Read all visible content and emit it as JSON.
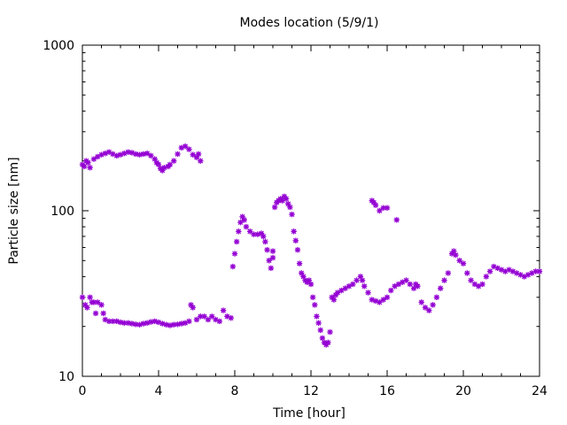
{
  "chart_data": {
    "type": "scatter",
    "title": "Modes location (5/9/1)",
    "xlabel": "Time [hour]",
    "ylabel": "Particle size [nm]",
    "xlim": [
      0,
      24
    ],
    "ylim": [
      10,
      1000
    ],
    "y_scale": "log",
    "x_ticks": [
      0,
      4,
      8,
      12,
      16,
      20,
      24
    ],
    "y_ticks": [
      10,
      100,
      1000
    ],
    "grid": false,
    "legend": "none",
    "marker_color": "#9400d3",
    "series": [
      {
        "points": [
          [
            0.0,
            190
          ],
          [
            0.1,
            185
          ],
          [
            0.2,
            200
          ],
          [
            0.3,
            195
          ],
          [
            0.4,
            182
          ],
          [
            0.6,
            205
          ],
          [
            0.8,
            212
          ],
          [
            1.0,
            218
          ],
          [
            1.2,
            222
          ],
          [
            1.4,
            226
          ],
          [
            1.6,
            220
          ],
          [
            1.8,
            215
          ],
          [
            2.0,
            218
          ],
          [
            2.2,
            222
          ],
          [
            2.4,
            226
          ],
          [
            2.6,
            224
          ],
          [
            2.8,
            220
          ],
          [
            3.0,
            218
          ],
          [
            3.2,
            220
          ],
          [
            3.4,
            222
          ],
          [
            3.6,
            215
          ],
          [
            3.8,
            205
          ],
          [
            3.9,
            195
          ],
          [
            4.0,
            190
          ],
          [
            4.1,
            180
          ],
          [
            4.2,
            175
          ],
          [
            4.3,
            182
          ],
          [
            4.5,
            185
          ],
          [
            4.6,
            190
          ],
          [
            4.8,
            200
          ],
          [
            5.0,
            220
          ],
          [
            5.2,
            240
          ],
          [
            5.4,
            245
          ],
          [
            5.6,
            235
          ],
          [
            5.8,
            218
          ],
          [
            6.0,
            210
          ],
          [
            6.2,
            200
          ],
          [
            6.1,
            220
          ],
          [
            0.0,
            30
          ],
          [
            0.15,
            27
          ],
          [
            0.25,
            26
          ],
          [
            0.4,
            30
          ],
          [
            0.5,
            28
          ],
          [
            0.6,
            28
          ],
          [
            0.8,
            28
          ],
          [
            1.0,
            27
          ],
          [
            1.1,
            24
          ],
          [
            0.7,
            24
          ],
          [
            1.2,
            22
          ],
          [
            1.4,
            21.5
          ],
          [
            1.6,
            21.5
          ],
          [
            1.8,
            21.5
          ],
          [
            2.0,
            21.2
          ],
          [
            2.2,
            21.0
          ],
          [
            2.4,
            21.0
          ],
          [
            2.6,
            20.8
          ],
          [
            2.8,
            20.6
          ],
          [
            3.0,
            20.5
          ],
          [
            3.2,
            20.8
          ],
          [
            3.4,
            21.0
          ],
          [
            3.6,
            21.3
          ],
          [
            3.8,
            21.5
          ],
          [
            4.0,
            21.2
          ],
          [
            4.2,
            20.8
          ],
          [
            4.4,
            20.5
          ],
          [
            4.6,
            20.3
          ],
          [
            4.8,
            20.5
          ],
          [
            5.0,
            20.6
          ],
          [
            5.2,
            20.8
          ],
          [
            5.4,
            21.0
          ],
          [
            5.6,
            21.5
          ],
          [
            5.7,
            27
          ],
          [
            5.8,
            26
          ],
          [
            6.0,
            22
          ],
          [
            6.2,
            23
          ],
          [
            6.4,
            23
          ],
          [
            6.6,
            22
          ],
          [
            6.8,
            23
          ],
          [
            7.0,
            22
          ],
          [
            7.2,
            21.5
          ],
          [
            7.4,
            25
          ],
          [
            7.6,
            23
          ],
          [
            7.8,
            22.5
          ],
          [
            7.9,
            46
          ],
          [
            8.0,
            55
          ],
          [
            8.1,
            65
          ],
          [
            8.2,
            75
          ],
          [
            8.3,
            85
          ],
          [
            8.4,
            92
          ],
          [
            8.5,
            88
          ],
          [
            8.6,
            80
          ],
          [
            8.8,
            75
          ],
          [
            9.0,
            72
          ],
          [
            9.2,
            72
          ],
          [
            9.4,
            73
          ],
          [
            9.5,
            70
          ],
          [
            9.6,
            65
          ],
          [
            9.7,
            58
          ],
          [
            9.8,
            50
          ],
          [
            9.9,
            45
          ],
          [
            10.0,
            52
          ],
          [
            10.0,
            57
          ],
          [
            10.1,
            105
          ],
          [
            10.2,
            112
          ],
          [
            10.3,
            115
          ],
          [
            10.4,
            118
          ],
          [
            10.5,
            115
          ],
          [
            10.6,
            122
          ],
          [
            10.7,
            118
          ],
          [
            10.8,
            110
          ],
          [
            10.9,
            105
          ],
          [
            11.0,
            95
          ],
          [
            11.1,
            75
          ],
          [
            11.2,
            66
          ],
          [
            11.3,
            58
          ],
          [
            11.4,
            48
          ],
          [
            11.5,
            42
          ],
          [
            11.6,
            40
          ],
          [
            11.7,
            38
          ],
          [
            11.8,
            37
          ],
          [
            11.9,
            38
          ],
          [
            12.0,
            36
          ],
          [
            12.1,
            30
          ],
          [
            12.2,
            27
          ],
          [
            12.3,
            23
          ],
          [
            12.4,
            21
          ],
          [
            12.5,
            19
          ],
          [
            12.6,
            17
          ],
          [
            12.7,
            16
          ],
          [
            12.8,
            15.5
          ],
          [
            12.9,
            16
          ],
          [
            13.0,
            18.5
          ],
          [
            13.1,
            30
          ],
          [
            13.2,
            29
          ],
          [
            13.3,
            31
          ],
          [
            13.4,
            32
          ],
          [
            13.6,
            33
          ],
          [
            13.8,
            34
          ],
          [
            14.0,
            35
          ],
          [
            14.2,
            36
          ],
          [
            14.4,
            38
          ],
          [
            14.6,
            40
          ],
          [
            14.7,
            38
          ],
          [
            14.8,
            35
          ],
          [
            15.0,
            32
          ],
          [
            15.2,
            29
          ],
          [
            15.4,
            28.5
          ],
          [
            15.6,
            28
          ],
          [
            15.8,
            29
          ],
          [
            16.0,
            30
          ],
          [
            16.2,
            33
          ],
          [
            16.4,
            35
          ],
          [
            16.6,
            36
          ],
          [
            16.8,
            37
          ],
          [
            17.0,
            38
          ],
          [
            17.2,
            36
          ],
          [
            17.4,
            34
          ],
          [
            17.5,
            36
          ],
          [
            17.6,
            35
          ],
          [
            17.8,
            28
          ],
          [
            18.0,
            26
          ],
          [
            18.2,
            25
          ],
          [
            18.4,
            27
          ],
          [
            18.6,
            30
          ],
          [
            18.8,
            34
          ],
          [
            19.0,
            38
          ],
          [
            19.2,
            42
          ],
          [
            19.4,
            55
          ],
          [
            19.5,
            57
          ],
          [
            19.6,
            54
          ],
          [
            19.8,
            50
          ],
          [
            20.0,
            48
          ],
          [
            20.2,
            42
          ],
          [
            20.4,
            38
          ],
          [
            20.6,
            36
          ],
          [
            20.8,
            35
          ],
          [
            21.0,
            36
          ],
          [
            21.2,
            40
          ],
          [
            21.4,
            43
          ],
          [
            21.6,
            46
          ],
          [
            21.8,
            45
          ],
          [
            22.0,
            44
          ],
          [
            22.2,
            43
          ],
          [
            22.4,
            44
          ],
          [
            22.6,
            43
          ],
          [
            22.8,
            42
          ],
          [
            23.0,
            41
          ],
          [
            23.2,
            40
          ],
          [
            23.4,
            41
          ],
          [
            23.6,
            42
          ],
          [
            23.8,
            43
          ],
          [
            24.0,
            43
          ],
          [
            15.2,
            115
          ],
          [
            15.3,
            112
          ],
          [
            15.4,
            108
          ],
          [
            15.6,
            100
          ],
          [
            15.8,
            104
          ],
          [
            16.0,
            104
          ],
          [
            16.5,
            88
          ]
        ]
      }
    ]
  }
}
